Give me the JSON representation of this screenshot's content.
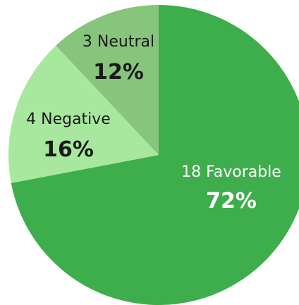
{
  "chart_data": {
    "type": "pie",
    "slices": [
      {
        "count_label": "18 Favorable",
        "percent_label": "72%",
        "value": 72,
        "color": "#3ead4b",
        "text_color": "#ffffff"
      },
      {
        "count_label": "4 Negative",
        "percent_label": "16%",
        "value": 16,
        "color": "#a8e89e",
        "text_color": "#1a1a1a"
      },
      {
        "count_label": "3 Neutral",
        "percent_label": "12%",
        "value": 12,
        "color": "#87c47c",
        "text_color": "#1a1a1a"
      }
    ],
    "start_angle_deg": 0,
    "direction": "clockwise",
    "legend": "none",
    "title": ""
  }
}
